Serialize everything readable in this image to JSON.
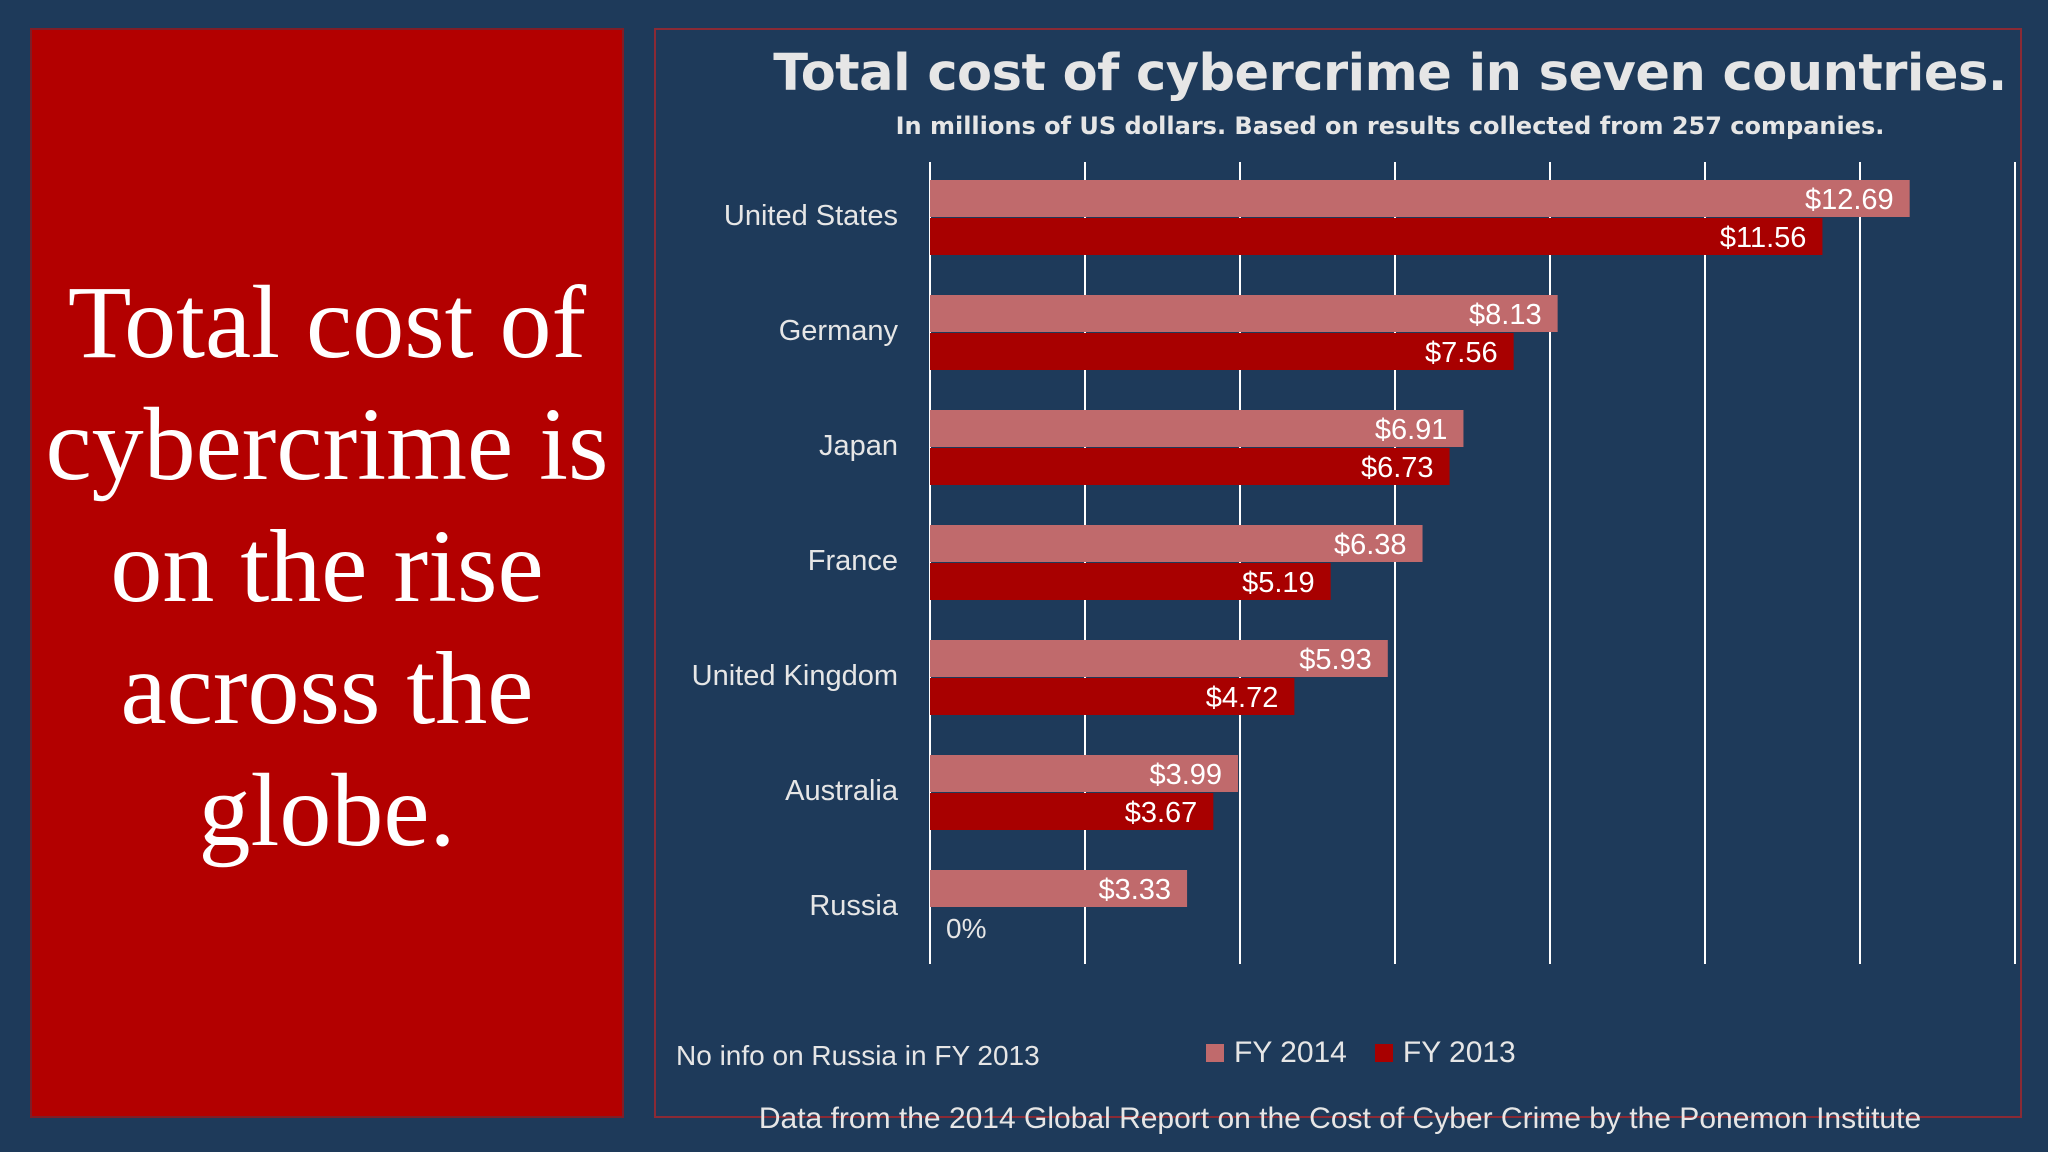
{
  "headline": "Total cost of cybercrime is on the rise across the globe.",
  "note": "No info on Russia in FY 2013",
  "source": "Data from the 2014 Global Report on the Cost of Cyber Crime by the Ponemon Institute",
  "colors": {
    "background": "#1e3a5a",
    "left_panel": "#b30000",
    "fy2014": "#c06a6c",
    "fy2013": "#a80000",
    "gridline": "#ffffff",
    "text": "#e6e6e6"
  },
  "chart_data": {
    "type": "bar",
    "orientation": "horizontal",
    "title": "Total cost of cybercrime in seven countries.",
    "subtitle": "In millions of US dollars. Based on results collected from 257 companies.",
    "categories": [
      "United States",
      "Germany",
      "Japan",
      "France",
      "United Kingdom",
      "Australia",
      "Russia"
    ],
    "series": [
      {
        "name": "FY 2014",
        "values": [
          12.69,
          8.13,
          6.91,
          6.38,
          5.93,
          3.99,
          3.33
        ],
        "labels": [
          "$12.69",
          "$8.13",
          "$6.91",
          "$6.38",
          "$5.93",
          "$3.99",
          "$3.33"
        ]
      },
      {
        "name": "FY 2013",
        "values": [
          11.56,
          7.56,
          6.73,
          5.19,
          4.72,
          3.67,
          null
        ],
        "labels": [
          "$11.56",
          "$7.56",
          "$6.73",
          "$5.19",
          "$4.72",
          "$3.67",
          ""
        ]
      }
    ],
    "axis_zero_label": "0%",
    "xlim": [
      0,
      14
    ],
    "grid": true,
    "legend_position": "bottom"
  }
}
